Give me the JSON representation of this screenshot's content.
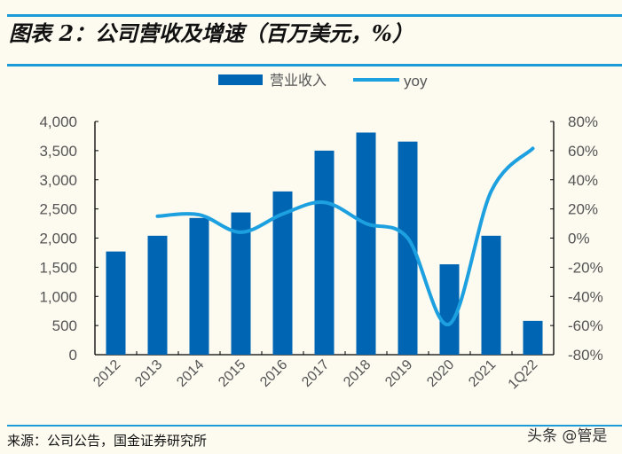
{
  "title": "图表 2：公司营收及增速（百万美元，%）",
  "source": "来源：公司公告，国金证券研究所",
  "watermark": "头条 @管是",
  "colors": {
    "bar": "#0066b3",
    "line": "#1ca0e0",
    "rule": "#1a9ad6",
    "background": "#fdfaf0"
  },
  "chart_data": {
    "type": "bar+line",
    "categories": [
      "2012",
      "2013",
      "2014",
      "2015",
      "2016",
      "2017",
      "2018",
      "2019",
      "2020",
      "2021",
      "1Q22"
    ],
    "series": [
      {
        "name": "营业收入",
        "type": "bar",
        "axis": "left",
        "values": [
          1770,
          2040,
          2345,
          2440,
          2800,
          3500,
          3810,
          3655,
          1550,
          2040,
          580
        ]
      },
      {
        "name": "yoy",
        "type": "line",
        "axis": "right",
        "unit": "%",
        "values": [
          null,
          15,
          16,
          4,
          16.5,
          24.5,
          10,
          0,
          -59,
          32,
          61.5
        ]
      }
    ],
    "left_axis": {
      "range": [
        0,
        4000
      ],
      "ticks": [
        "0",
        "500",
        "1,000",
        "1,500",
        "2,000",
        "2,500",
        "3,000",
        "3,500",
        "4,000"
      ]
    },
    "right_axis": {
      "range": [
        -80,
        80
      ],
      "ticks": [
        "-80%",
        "-60%",
        "-40%",
        "-20%",
        "0%",
        "20%",
        "40%",
        "60%",
        "80%"
      ]
    },
    "legend": "top-center",
    "grid": false
  }
}
